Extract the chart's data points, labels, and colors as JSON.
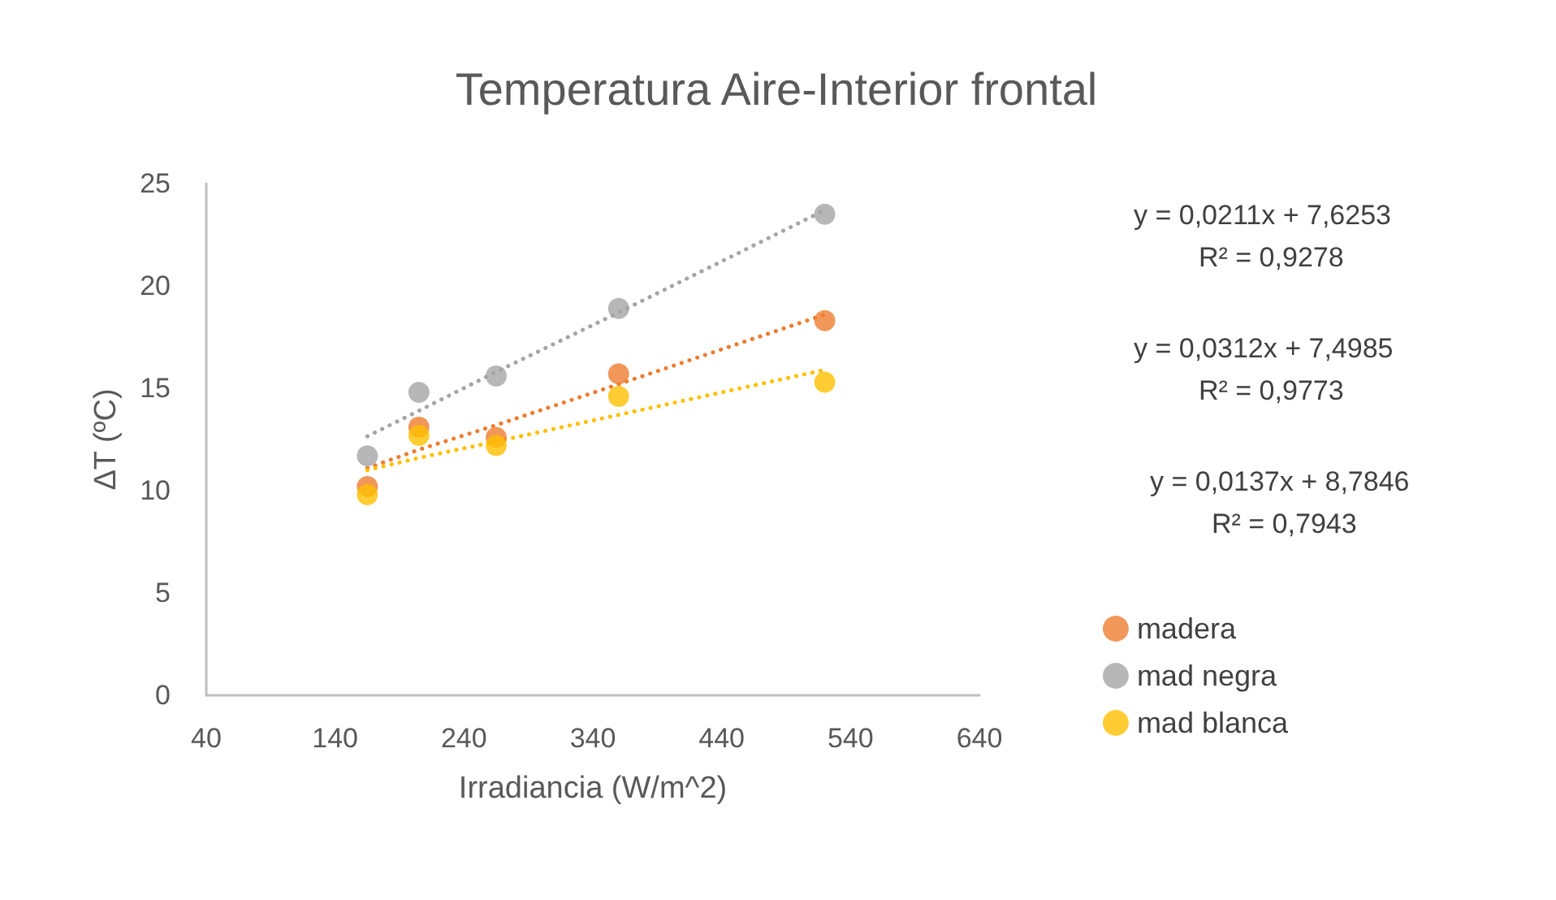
{
  "chart_data": {
    "type": "scatter",
    "title": "Temperatura Aire-Interior frontal",
    "xlabel": "Irradiancia (W/m^2)",
    "ylabel": "ΔT (ºC)",
    "xlim": [
      40,
      640
    ],
    "xticks": [
      40,
      140,
      240,
      340,
      440,
      540,
      640
    ],
    "ylim": [
      0,
      25
    ],
    "yticks": [
      0,
      5,
      10,
      15,
      20,
      25
    ],
    "grid": false,
    "legend": "right",
    "marker": "circle",
    "x": [
      165,
      205,
      265,
      360,
      520
    ],
    "series": [
      {
        "name": "madera",
        "color": "#ed7d31",
        "values": [
          10.2,
          13.1,
          12.6,
          15.7,
          18.3
        ]
      },
      {
        "name": "mad negra",
        "color": "#a5a5a5",
        "values": [
          11.7,
          14.8,
          15.6,
          18.9,
          23.5
        ]
      },
      {
        "name": "mad blanca",
        "color": "#ffc000",
        "values": [
          9.8,
          12.7,
          12.2,
          14.6,
          15.3
        ]
      },
      {
        "type": "line",
        "line_style": "dotted",
        "marker": "none",
        "color": "#ed7d31",
        "values": [
          11.1,
          12.0,
          13.2,
          15.2,
          18.6
        ]
      },
      {
        "type": "line",
        "line_style": "dotted",
        "marker": "none",
        "color": "#a5a5a5",
        "values": [
          12.65,
          13.9,
          15.8,
          18.7,
          23.7
        ]
      },
      {
        "type": "line",
        "line_style": "dotted",
        "marker": "none",
        "color": "#ffc000",
        "values": [
          11.0,
          11.6,
          12.4,
          13.7,
          15.9
        ]
      }
    ],
    "annotations": [
      "y = 0,0211x + 7,6253",
      "R² = 0,9278",
      "y = 0,0312x + 7,4985",
      "R² = 0,9773",
      "y = 0,0137x + 8,7846",
      "R² = 0,7943"
    ]
  }
}
